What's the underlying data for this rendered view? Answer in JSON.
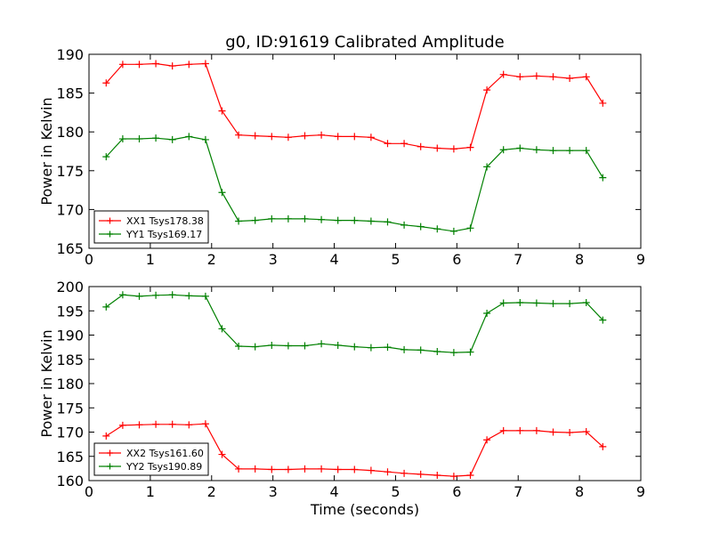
{
  "chart_data": [
    {
      "type": "line",
      "title": "g0, ID:91619 Calibrated Amplitude",
      "xlabel": "",
      "ylabel": "Power in Kelvin",
      "xlim": [
        0,
        9
      ],
      "ylim": [
        165,
        190
      ],
      "xticks": [
        0,
        1,
        2,
        3,
        4,
        5,
        6,
        7,
        8,
        9
      ],
      "yticks": [
        165,
        170,
        175,
        180,
        185,
        190
      ],
      "legend_position": "lower-left",
      "x": [
        0.28,
        0.55,
        0.82,
        1.09,
        1.36,
        1.63,
        1.9,
        2.17,
        2.44,
        2.71,
        2.98,
        3.25,
        3.52,
        3.79,
        4.06,
        4.33,
        4.6,
        4.87,
        5.14,
        5.41,
        5.68,
        5.95,
        6.22,
        6.49,
        6.76,
        7.03,
        7.3,
        7.57,
        7.84,
        8.11,
        8.38
      ],
      "series": [
        {
          "name": "XX1 Tsys178.38",
          "color": "#ff0000",
          "values": [
            186.3,
            188.7,
            188.7,
            188.8,
            188.5,
            188.7,
            188.8,
            182.7,
            179.6,
            179.5,
            179.4,
            179.3,
            179.5,
            179.6,
            179.4,
            179.4,
            179.3,
            178.5,
            178.5,
            178.1,
            177.9,
            177.8,
            178.0,
            185.4,
            187.4,
            187.1,
            187.2,
            187.1,
            186.9,
            187.1,
            183.7
          ]
        },
        {
          "name": "YY1 Tsys169.17",
          "color": "#008000",
          "values": [
            176.8,
            179.1,
            179.1,
            179.2,
            179.0,
            179.4,
            179.0,
            172.2,
            168.5,
            168.6,
            168.8,
            168.8,
            168.8,
            168.7,
            168.6,
            168.6,
            168.5,
            168.4,
            168.0,
            167.8,
            167.5,
            167.2,
            167.6,
            175.5,
            177.7,
            177.9,
            177.7,
            177.6,
            177.6,
            177.6,
            174.1
          ]
        }
      ]
    },
    {
      "type": "line",
      "title": "",
      "xlabel": "Time (seconds)",
      "ylabel": "Power in Kelvin",
      "xlim": [
        0,
        9
      ],
      "ylim": [
        160,
        200
      ],
      "xticks": [
        0,
        1,
        2,
        3,
        4,
        5,
        6,
        7,
        8,
        9
      ],
      "yticks": [
        160,
        165,
        170,
        175,
        180,
        185,
        190,
        195,
        200
      ],
      "legend_position": "lower-left",
      "x": [
        0.28,
        0.55,
        0.82,
        1.09,
        1.36,
        1.63,
        1.9,
        2.17,
        2.44,
        2.71,
        2.98,
        3.25,
        3.52,
        3.79,
        4.06,
        4.33,
        4.6,
        4.87,
        5.14,
        5.41,
        5.68,
        5.95,
        6.22,
        6.49,
        6.76,
        7.03,
        7.3,
        7.57,
        7.84,
        8.11,
        8.38
      ],
      "series": [
        {
          "name": "XX2 Tsys161.60",
          "color": "#ff0000",
          "values": [
            169.2,
            171.4,
            171.5,
            171.6,
            171.6,
            171.5,
            171.7,
            165.4,
            162.4,
            162.4,
            162.3,
            162.3,
            162.4,
            162.4,
            162.3,
            162.3,
            162.1,
            161.8,
            161.5,
            161.3,
            161.1,
            160.9,
            161.1,
            168.4,
            170.3,
            170.3,
            170.3,
            170.0,
            169.9,
            170.1,
            167.0
          ]
        },
        {
          "name": "YY2 Tsys190.89",
          "color": "#008000",
          "values": [
            195.8,
            198.3,
            198.0,
            198.2,
            198.3,
            198.1,
            198.0,
            191.3,
            187.7,
            187.6,
            187.9,
            187.8,
            187.8,
            188.2,
            187.9,
            187.6,
            187.4,
            187.5,
            187.0,
            186.9,
            186.6,
            186.4,
            186.5,
            194.5,
            196.6,
            196.7,
            196.6,
            196.5,
            196.5,
            196.7,
            193.1
          ]
        }
      ]
    }
  ]
}
